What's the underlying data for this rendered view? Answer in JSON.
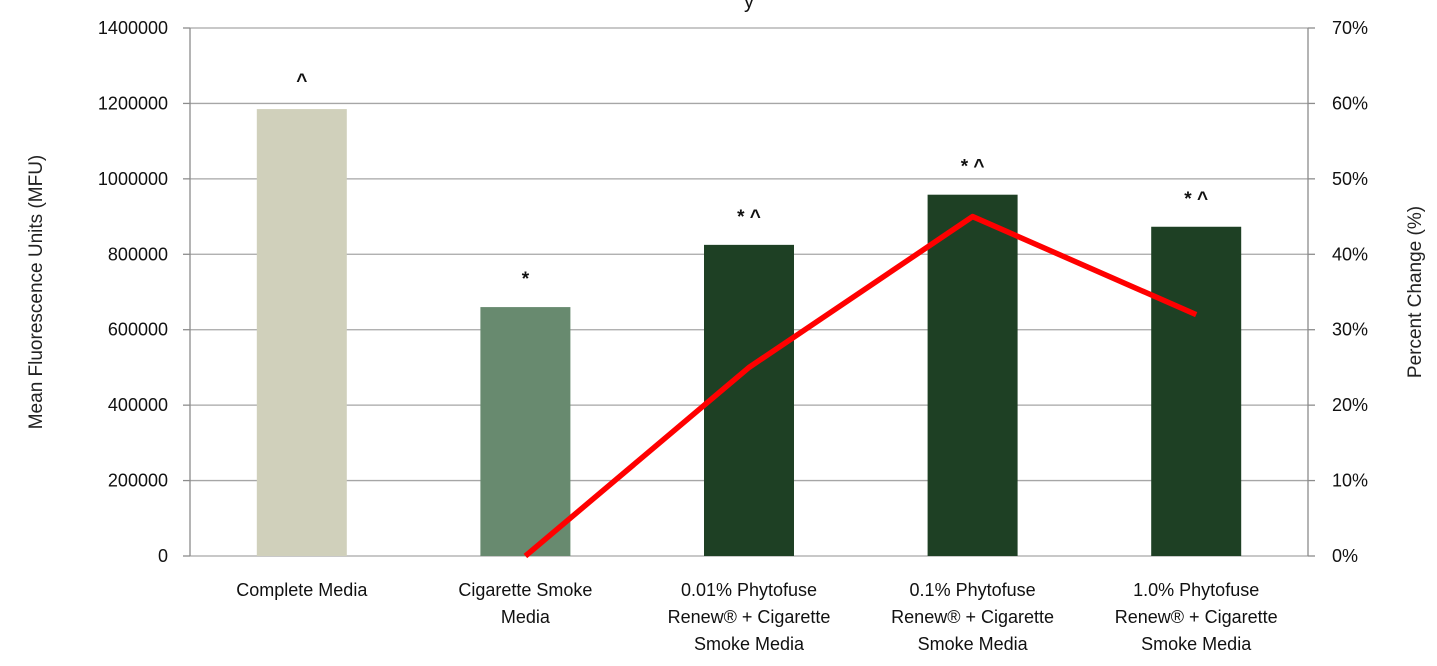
{
  "chart_data": {
    "type": "bar",
    "title": "y",
    "categories": [
      [
        "Complete Media"
      ],
      [
        "Cigarette Smoke",
        "Media"
      ],
      [
        "0.01% Phytofuse",
        "Renew® + Cigarette",
        "Smoke Media"
      ],
      [
        "0.1% Phytofuse",
        "Renew® + Cigarette",
        "Smoke Media"
      ],
      [
        "1.0% Phytofuse",
        "Renew® + Cigarette",
        "Smoke Media"
      ]
    ],
    "series": [
      {
        "kind": "bar",
        "axis": "left",
        "values": [
          1185000,
          660000,
          825000,
          958000,
          873000
        ],
        "colors": [
          "#d0d0bb",
          "#688a6f",
          "#1e4024",
          "#1e4024",
          "#1e4024"
        ]
      },
      {
        "kind": "line",
        "axis": "right",
        "values": [
          null,
          0,
          0.25,
          0.45,
          0.32
        ],
        "color": "#ff0000"
      }
    ],
    "annotations": [
      "^",
      "*",
      "* ^",
      "* ^",
      "* ^"
    ],
    "ylabel": "Mean Fluorescence Units (MFU)",
    "y2label": "Percent Change (%)",
    "ylim": [
      0,
      1400000
    ],
    "y2lim": [
      0,
      0.7
    ],
    "yticks": [
      "0",
      "200000",
      "400000",
      "600000",
      "800000",
      "1000000",
      "1200000",
      "1400000"
    ],
    "y2ticks": [
      "0%",
      "10%",
      "20%",
      "30%",
      "40%",
      "50%",
      "60%",
      "70%"
    ],
    "grid": true,
    "legend": "none"
  }
}
